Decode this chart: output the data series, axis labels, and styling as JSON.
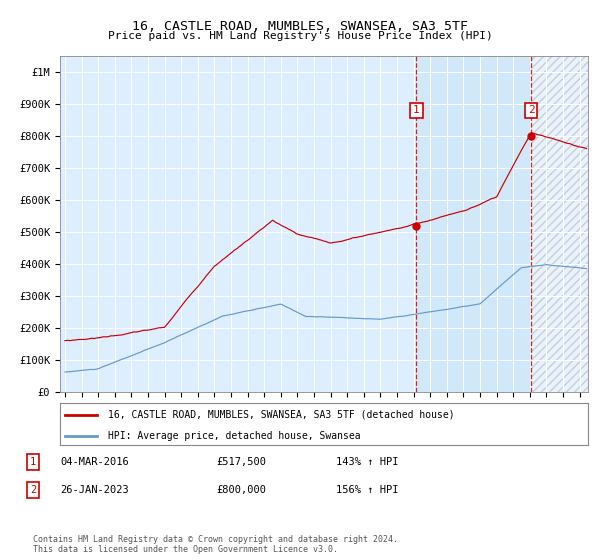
{
  "title": "16, CASTLE ROAD, MUMBLES, SWANSEA, SA3 5TF",
  "subtitle": "Price paid vs. HM Land Registry's House Price Index (HPI)",
  "legend_line1": "16, CASTLE ROAD, MUMBLES, SWANSEA, SA3 5TF (detached house)",
  "legend_line2": "HPI: Average price, detached house, Swansea",
  "sale1_date": "04-MAR-2016",
  "sale1_price": "£517,500",
  "sale1_hpi": "143% ↑ HPI",
  "sale2_date": "26-JAN-2023",
  "sale2_price": "£800,000",
  "sale2_hpi": "156% ↑ HPI",
  "sale1_label": "1",
  "sale2_label": "2",
  "footer": "Contains HM Land Registry data © Crown copyright and database right 2024.\nThis data is licensed under the Open Government Licence v3.0.",
  "property_color": "#cc0000",
  "hpi_color": "#6699cc",
  "bg_color": "#ddeeff",
  "sale1_x_year": 2016.17,
  "sale2_x_year": 2023.07,
  "ylim_max": 1050000,
  "xlim_start": 1994.7,
  "xlim_end": 2026.5,
  "yticks": [
    0,
    100000,
    200000,
    300000,
    400000,
    500000,
    600000,
    700000,
    800000,
    900000,
    1000000
  ],
  "xtick_years": [
    1995,
    1996,
    1997,
    1998,
    1999,
    2000,
    2001,
    2002,
    2003,
    2004,
    2005,
    2006,
    2007,
    2008,
    2009,
    2010,
    2011,
    2012,
    2013,
    2014,
    2015,
    2016,
    2017,
    2018,
    2019,
    2020,
    2021,
    2022,
    2023,
    2024,
    2025,
    2026
  ]
}
